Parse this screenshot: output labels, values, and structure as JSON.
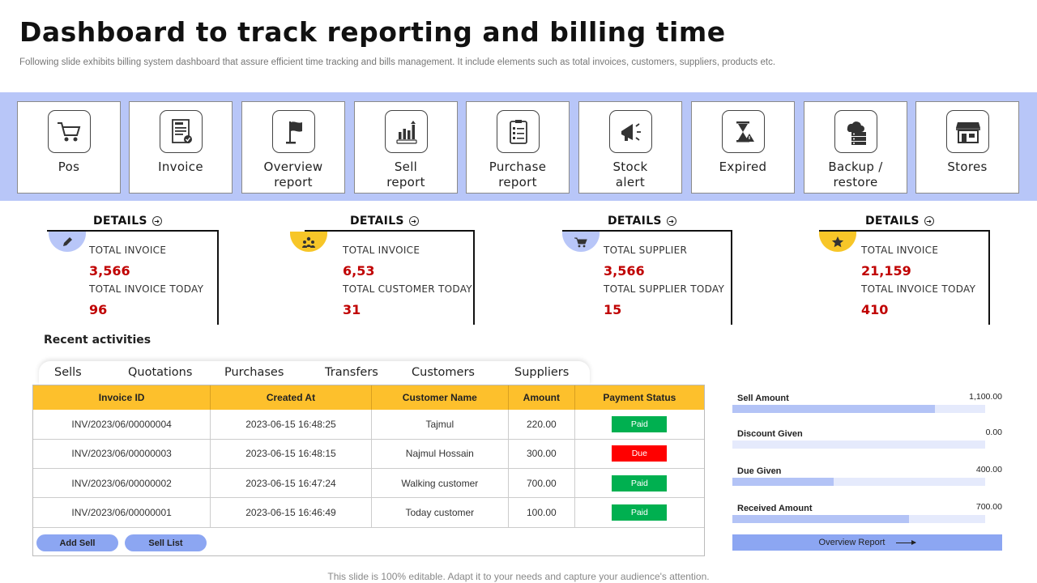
{
  "header": {
    "title": "Dashboard to track reporting and billing time",
    "subtitle": "Following slide exhibits billing system dashboard that assure efficient time tracking and bills management. It include elements such as total invoices, customers, suppliers, products etc."
  },
  "modules": [
    {
      "name": "pos",
      "icon": "shopping-cart-icon",
      "label_lines": [
        "Pos"
      ]
    },
    {
      "name": "invoice",
      "icon": "invoice-icon",
      "label_lines": [
        "Invoice"
      ]
    },
    {
      "name": "overview-report",
      "icon": "flag-icon",
      "label_lines": [
        "Overview",
        "report"
      ]
    },
    {
      "name": "sell-report",
      "icon": "bar-chart-icon",
      "label_lines": [
        "Sell",
        "report"
      ]
    },
    {
      "name": "purchase-report",
      "icon": "clipboard-icon",
      "label_lines": [
        "Purchase",
        "report"
      ]
    },
    {
      "name": "stock-alert",
      "icon": "megaphone-icon",
      "label_lines": [
        "Stock",
        "alert"
      ]
    },
    {
      "name": "expired",
      "icon": "hourglass-warning-icon",
      "label_lines": [
        "Expired"
      ]
    },
    {
      "name": "backup-restore",
      "icon": "cloud-server-icon",
      "label_lines": [
        "Backup /",
        "restore"
      ]
    },
    {
      "name": "stores",
      "icon": "store-icon",
      "label_lines": [
        "Stores"
      ]
    }
  ],
  "details": [
    {
      "heading": "DETAILS",
      "icon": "pencil-icon",
      "circle_color": "#b8c6f8",
      "label1": "TOTAL INVOICE",
      "value1": "3,566",
      "label2": "TOTAL INVOICE  TODAY",
      "value2": "96"
    },
    {
      "heading": "DETAILS",
      "icon": "people-icon",
      "circle_color": "#f7c628",
      "label1": "TOTAL INVOICE",
      "value1": "6,53",
      "label2": "TOTAL CUSTOMER  TODAY",
      "value2": "31"
    },
    {
      "heading": "DETAILS",
      "icon": "cart-icon",
      "circle_color": "#b8c6f8",
      "label1": "TOTAL SUPPLIER",
      "value1": "3,566",
      "label2": "TOTAL SUPPLIER  TODAY",
      "value2": "15"
    },
    {
      "heading": "DETAILS",
      "icon": "star-icon",
      "circle_color": "#f7c628",
      "label1": "TOTAL INVOICE",
      "value1": "21,159",
      "label2": "TOTAL INVOICE  TODAY",
      "value2": "410"
    }
  ],
  "recent": {
    "title": "Recent activities",
    "tabs": [
      "Sells",
      "Quotations",
      "Purchases",
      "Transfers",
      "Customers",
      "Suppliers"
    ],
    "columns": [
      "Invoice ID",
      "Created At",
      "Customer  Name",
      "Amount",
      "Payment  Status"
    ],
    "rows": [
      {
        "id": "INV/2023/06/00000004",
        "created": "2023-06-15 16:48:25",
        "customer": "Tajmul",
        "amount": "220.00",
        "status": "Paid"
      },
      {
        "id": "INV/2023/06/00000003",
        "created": "2023-06-15 16:48:15",
        "customer": "Najmul Hossain",
        "amount": "300.00",
        "status": "Due"
      },
      {
        "id": "INV/2023/06/00000002",
        "created": "2023-06-15 16:47:24",
        "customer": "Walking customer",
        "amount": "700.00",
        "status": "Paid"
      },
      {
        "id": "INV/2023/06/00000001",
        "created": "2023-06-15 16:46:49",
        "customer": "Today customer",
        "amount": "100.00",
        "status": "Paid"
      }
    ],
    "status_colors": {
      "Paid": "#00b050",
      "Due": "#ff0000"
    },
    "add_sell_label": "Add Sell",
    "sell_list_label": "Sell List"
  },
  "stats": [
    {
      "label": "Sell Amount",
      "value": "1,100.00",
      "fraction": 0.8
    },
    {
      "label": "Discount Given",
      "value": "0.00",
      "fraction": 0
    },
    {
      "label": "Due Given",
      "value": "400.00",
      "fraction": 0.4
    },
    {
      "label": "Received Amount",
      "value": "700.00",
      "fraction": 0.7
    }
  ],
  "overview_button_label": "Overview Report",
  "footer": "This slide is 100% editable. Adapt it to your needs and capture your audience's attention."
}
